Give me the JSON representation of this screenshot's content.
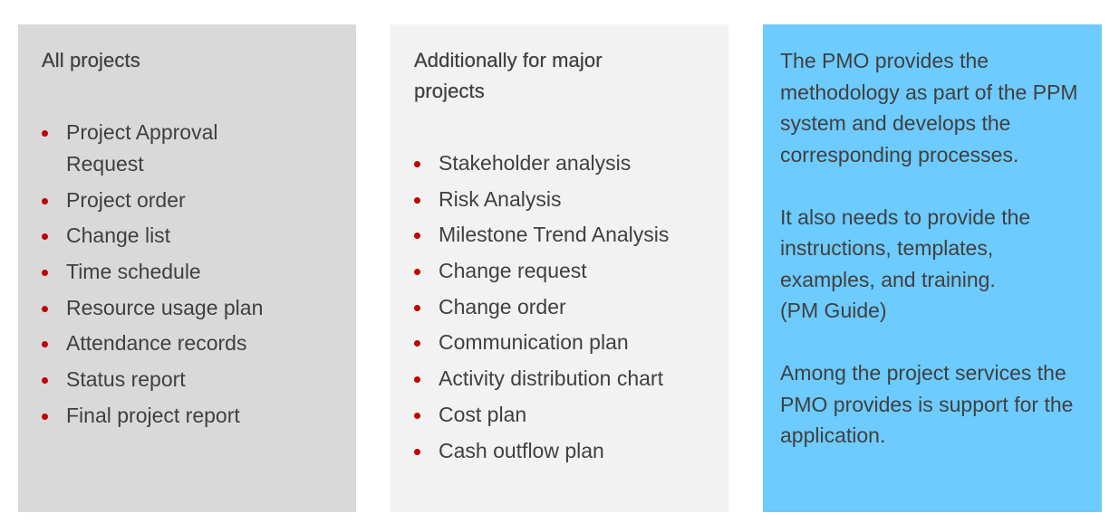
{
  "all_projects": {
    "heading": "All projects",
    "items": [
      "Project Approval Request",
      "Project order",
      "Change list",
      "Time schedule",
      "Resource usage plan",
      "Attendance records",
      "Status report",
      "Final project report"
    ]
  },
  "major_projects": {
    "heading": "Additionally for major projects",
    "items": [
      "Stakeholder analysis",
      "Risk Analysis",
      "Milestone Trend Analysis",
      "Change request",
      "Change order",
      "Communication plan",
      "Activity distribution chart",
      "Cost plan",
      "Cash outflow plan"
    ]
  },
  "pmo_note": {
    "paragraphs": [
      "The PMO provides the methodology as part of the PPM system and develops the corresponding processes.",
      "It also needs to provide the instructions, templates, examples, and training.",
      "Among the project services the PMO provides is support for the application."
    ],
    "pm_guide": "(PM Guide)"
  },
  "colors": {
    "panel1": "#d9d9d9",
    "panel2": "#f2f2f2",
    "panel3": "#6dcbfd",
    "bullet": "#c00000",
    "text": "#404040"
  }
}
